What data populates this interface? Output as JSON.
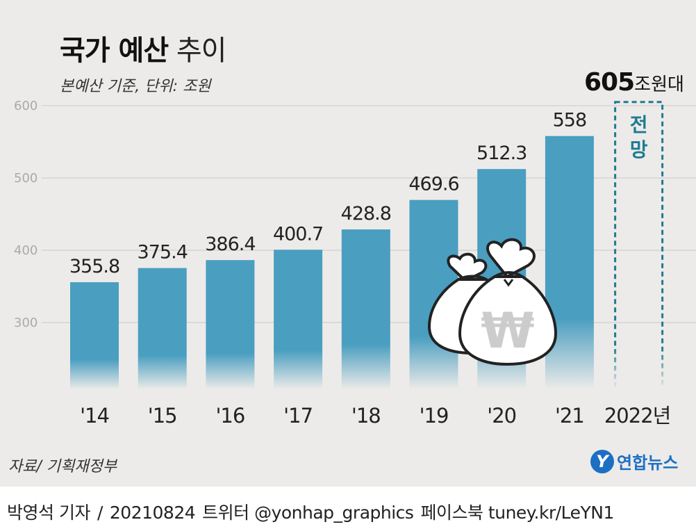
{
  "header": {
    "title_bold": "국가 예산",
    "title_light": "추이",
    "subtitle": "본예산 기준, 단위: 조원"
  },
  "forecast": {
    "value": "605",
    "unit": "조원대",
    "label_line1": "전",
    "label_line2": "망"
  },
  "source": "자료/ 기획재정부",
  "logo": {
    "mark": "Y",
    "text": "연합뉴스"
  },
  "footer": {
    "reporter": "박영석 기자",
    "sep": "/",
    "date": "20210824",
    "twitter": "트위터 @yonhap_graphics",
    "facebook": "페이스북 tuney.kr/LeYN1"
  },
  "colors": {
    "bar": "#4a9ec0",
    "forecast": "#1e7b91",
    "grid": "#cfcfcf",
    "background": "#ecebe9"
  },
  "chart_data": {
    "type": "bar",
    "title": "국가 예산 추이",
    "subtitle": "본예산 기준, 단위: 조원",
    "categories": [
      "'14",
      "'15",
      "'16",
      "'17",
      "'18",
      "'19",
      "'20",
      "'21",
      "2022년"
    ],
    "values": [
      355.8,
      375.4,
      386.4,
      400.7,
      428.8,
      469.6,
      512.3,
      558,
      null
    ],
    "value_labels": [
      "355.8",
      "375.4",
      "386.4",
      "400.7",
      "428.8",
      "469.6",
      "512.3",
      "558",
      ""
    ],
    "forecast": {
      "category": "2022년",
      "value": 605,
      "label": "605조원대 전망",
      "style": "dashed-outline"
    },
    "ylim": [
      200,
      600
    ],
    "yticks": [
      300,
      400,
      500,
      600
    ],
    "ytick_labels": [
      "300",
      "400",
      "500",
      "600"
    ],
    "grid": true,
    "xlabel": "",
    "ylabel": ""
  }
}
